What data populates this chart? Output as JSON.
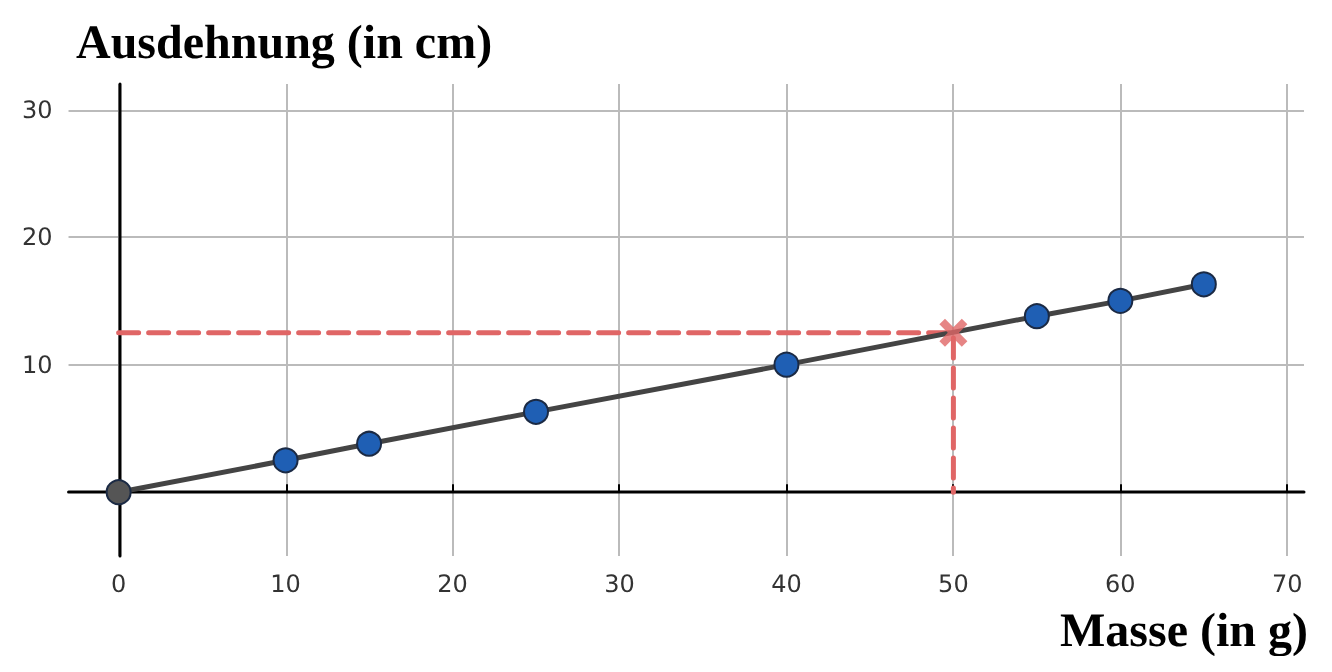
{
  "chart_data": {
    "type": "line",
    "xlabel": "Masse (in g)",
    "ylabel": "Ausdehnung (in cm)",
    "xlim": [
      -3,
      71
    ],
    "ylim": [
      -5,
      32
    ],
    "xticks": [
      0,
      10,
      20,
      30,
      40,
      50,
      60,
      70
    ],
    "yticks": [
      10,
      20,
      30
    ],
    "grid": true,
    "series": [
      {
        "x": [
          0,
          50,
          50
        ],
        "values": [
          12.5,
          12.5,
          0
        ],
        "color": "#e06666",
        "line_style": "dashed",
        "marker": "none"
      },
      {
        "x": [
          0,
          10,
          15,
          25,
          40,
          55,
          60,
          65
        ],
        "values": [
          0,
          2.5,
          3.8,
          6.3,
          10,
          13.8,
          15,
          16.3
        ],
        "color": "#444444",
        "colors": [
          "#555555",
          "#1f5fb4",
          "#1f5fb4",
          "#1f5fb4",
          "#1f5fb4",
          "#1f5fb4",
          "#1f5fb4",
          "#1f5fb4"
        ],
        "line_style": "solid",
        "marker": "circle"
      },
      {
        "type": "scatter",
        "x": [
          50
        ],
        "values": [
          12.5
        ],
        "color": "#e06666",
        "marker": "cross"
      }
    ]
  }
}
